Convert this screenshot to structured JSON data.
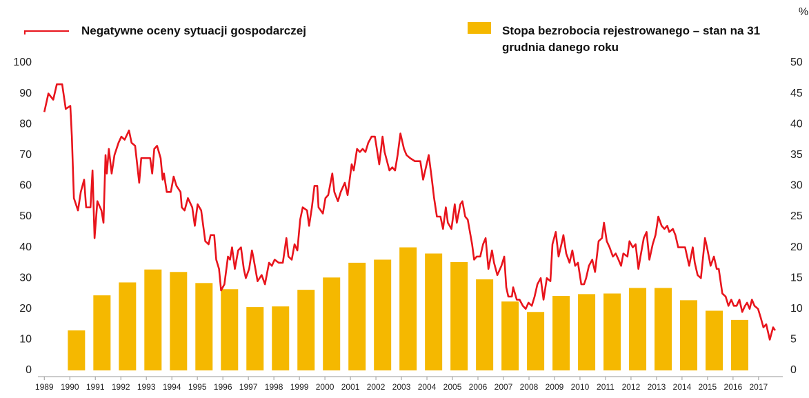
{
  "chart_data": {
    "type": "combo",
    "y2_label": "%",
    "xlim": [
      1988.75,
      2017.95
    ],
    "xticks": [
      1989,
      1990,
      1991,
      1992,
      1993,
      1994,
      1995,
      1996,
      1997,
      1998,
      1999,
      2000,
      2001,
      2002,
      2003,
      2004,
      2005,
      2006,
      2007,
      2008,
      2009,
      2010,
      2011,
      2012,
      2013,
      2014,
      2015,
      2016,
      2017
    ],
    "ylim": [
      0,
      100
    ],
    "yticks": [
      0,
      10,
      20,
      30,
      40,
      50,
      60,
      70,
      80,
      90,
      100
    ],
    "y2lim": [
      0,
      50
    ],
    "y2ticks": [
      0,
      5,
      10,
      15,
      20,
      25,
      30,
      35,
      40,
      45,
      50
    ],
    "grid": false,
    "series": [
      {
        "name": "Negatywne oceny sytuacji gospodarczej",
        "type": "line",
        "color": "#e8141c",
        "x": [
          1989.0,
          1989.16,
          1989.35,
          1989.49,
          1989.7,
          1989.84,
          1990.02,
          1990.08,
          1990.16,
          1990.32,
          1990.43,
          1990.56,
          1990.64,
          1990.81,
          1990.89,
          1990.97,
          1991.08,
          1991.24,
          1991.32,
          1991.4,
          1991.45,
          1991.53,
          1991.64,
          1991.75,
          1991.91,
          1992.02,
          1992.15,
          1992.32,
          1992.42,
          1992.56,
          1992.72,
          1992.8,
          1993.02,
          1993.15,
          1993.23,
          1993.31,
          1993.42,
          1993.56,
          1993.64,
          1993.69,
          1993.8,
          1993.96,
          1994.07,
          1994.18,
          1994.34,
          1994.39,
          1994.5,
          1994.63,
          1994.8,
          1994.9,
          1995.01,
          1995.15,
          1995.31,
          1995.44,
          1995.52,
          1995.66,
          1995.74,
          1995.85,
          1995.93,
          1996.06,
          1996.2,
          1996.28,
          1996.36,
          1996.47,
          1996.6,
          1996.71,
          1996.82,
          1996.9,
          1997.03,
          1997.14,
          1997.19,
          1997.36,
          1997.52,
          1997.65,
          1997.81,
          1997.92,
          1998.03,
          1998.19,
          1998.35,
          1998.49,
          1998.57,
          1998.7,
          1998.81,
          1998.92,
          1999.03,
          1999.13,
          1999.3,
          1999.38,
          1999.49,
          1999.59,
          1999.7,
          1999.75,
          1999.92,
          2000.02,
          2000.13,
          2000.29,
          2000.37,
          2000.51,
          2000.62,
          2000.78,
          2000.89,
          2001.05,
          2001.13,
          2001.26,
          2001.37,
          2001.48,
          2001.59,
          2001.7,
          2001.83,
          2001.96,
          2002.13,
          2002.26,
          2002.34,
          2002.53,
          2002.64,
          2002.75,
          2002.85,
          2002.96,
          2003.1,
          2003.2,
          2003.34,
          2003.53,
          2003.74,
          2003.85,
          2003.96,
          2004.07,
          2004.18,
          2004.28,
          2004.39,
          2004.53,
          2004.63,
          2004.74,
          2004.82,
          2004.96,
          2005.09,
          2005.17,
          2005.31,
          2005.39,
          2005.5,
          2005.6,
          2005.77,
          2005.85,
          2005.95,
          2006.09,
          2006.2,
          2006.3,
          2006.41,
          2006.55,
          2006.63,
          2006.76,
          2006.92,
          2007.03,
          2007.11,
          2007.19,
          2007.33,
          2007.38,
          2007.52,
          2007.63,
          2007.76,
          2007.87,
          2007.98,
          2008.11,
          2008.22,
          2008.33,
          2008.46,
          2008.57,
          2008.7,
          2008.84,
          2008.92,
          2009.05,
          2009.16,
          2009.3,
          2009.35,
          2009.46,
          2009.59,
          2009.7,
          2009.81,
          2009.92,
          2010.05,
          2010.16,
          2010.24,
          2010.35,
          2010.48,
          2010.59,
          2010.73,
          2010.86,
          2010.94,
          2011.05,
          2011.16,
          2011.29,
          2011.4,
          2011.51,
          2011.61,
          2011.7,
          2011.86,
          2011.94,
          2012.07,
          2012.18,
          2012.29,
          2012.37,
          2012.5,
          2012.61,
          2012.72,
          2012.85,
          2012.96,
          2013.07,
          2013.2,
          2013.31,
          2013.42,
          2013.5,
          2013.64,
          2013.74,
          2013.85,
          2013.99,
          2014.12,
          2014.2,
          2014.28,
          2014.42,
          2014.5,
          2014.61,
          2014.74,
          2014.9,
          2014.98,
          2015.12,
          2015.25,
          2015.36,
          2015.44,
          2015.58,
          2015.71,
          2015.82,
          2015.93,
          2016.03,
          2016.14,
          2016.25,
          2016.36,
          2016.47,
          2016.55,
          2016.65,
          2016.74,
          2016.84,
          2016.98,
          2017.09,
          2017.19,
          2017.3,
          2017.44,
          2017.57,
          2017.65
        ],
        "values": [
          84,
          90,
          88,
          93,
          93,
          85,
          86,
          76,
          56,
          52,
          58,
          62,
          53,
          53,
          65,
          43,
          55,
          52,
          48,
          70,
          64,
          72,
          64,
          70,
          74,
          76,
          75,
          78,
          74,
          73,
          61,
          69,
          69,
          69,
          64,
          72,
          73,
          69,
          62,
          64,
          58,
          58,
          63,
          60,
          58,
          53,
          52,
          56,
          53,
          47,
          54,
          52,
          42,
          41,
          44,
          44,
          36,
          33,
          26,
          28,
          37,
          36,
          40,
          33,
          39,
          40,
          33,
          30,
          33,
          39,
          37,
          29,
          31,
          28,
          35,
          34,
          36,
          35,
          35,
          43,
          37,
          36,
          41,
          39,
          49,
          53,
          52,
          47,
          53,
          60,
          60,
          53,
          51,
          56,
          57,
          64,
          58,
          55,
          58,
          61,
          57,
          67,
          65,
          72,
          71,
          72,
          71,
          74,
          76,
          76,
          67,
          76,
          71,
          65,
          66,
          65,
          70,
          77,
          72,
          70,
          69,
          68,
          68,
          62,
          66,
          70,
          63,
          56,
          50,
          50,
          46,
          53,
          48,
          46,
          54,
          48,
          54,
          55,
          50,
          49,
          41,
          36,
          37,
          37,
          41,
          43,
          33,
          39,
          35,
          31,
          34,
          37,
          27,
          24,
          24,
          27,
          23,
          23,
          21,
          20,
          22,
          21,
          24,
          28,
          30,
          23,
          30,
          29,
          41,
          45,
          37,
          42,
          44,
          38,
          35,
          39,
          34,
          35,
          28,
          28,
          30,
          34,
          36,
          32,
          42,
          43,
          48,
          42,
          40,
          37,
          38,
          36,
          34,
          38,
          37,
          42,
          40,
          41,
          33,
          37,
          43,
          45,
          36,
          41,
          44,
          50,
          47,
          46,
          47,
          45,
          46,
          44,
          40,
          40,
          40,
          37,
          34,
          40,
          35,
          31,
          30,
          43,
          40,
          34,
          37,
          33,
          33,
          25,
          24,
          21,
          23,
          21,
          21,
          23,
          19,
          21,
          22,
          20,
          23,
          21,
          20,
          17,
          14,
          15,
          10,
          14,
          13
        ]
      },
      {
        "name": "Stopa bezrobocia rejestrowanego – stan na 31 grudnia danego roku",
        "type": "bar",
        "axis": "y2",
        "color": "#f5b800",
        "x": [
          1990,
          1991,
          1992,
          1993,
          1994,
          1995,
          1996,
          1997,
          1998,
          1999,
          2000,
          2001,
          2002,
          2003,
          2004,
          2005,
          2006,
          2007,
          2008,
          2009,
          2010,
          2011,
          2012,
          2013,
          2014,
          2015,
          2016
        ],
        "values": [
          6.5,
          12.2,
          14.3,
          16.4,
          16.0,
          14.2,
          13.2,
          10.3,
          10.4,
          13.1,
          15.1,
          17.5,
          18.0,
          20.0,
          19.0,
          17.6,
          14.8,
          11.2,
          9.5,
          12.1,
          12.4,
          12.5,
          13.4,
          13.4,
          11.4,
          9.7,
          8.2
        ]
      }
    ]
  }
}
